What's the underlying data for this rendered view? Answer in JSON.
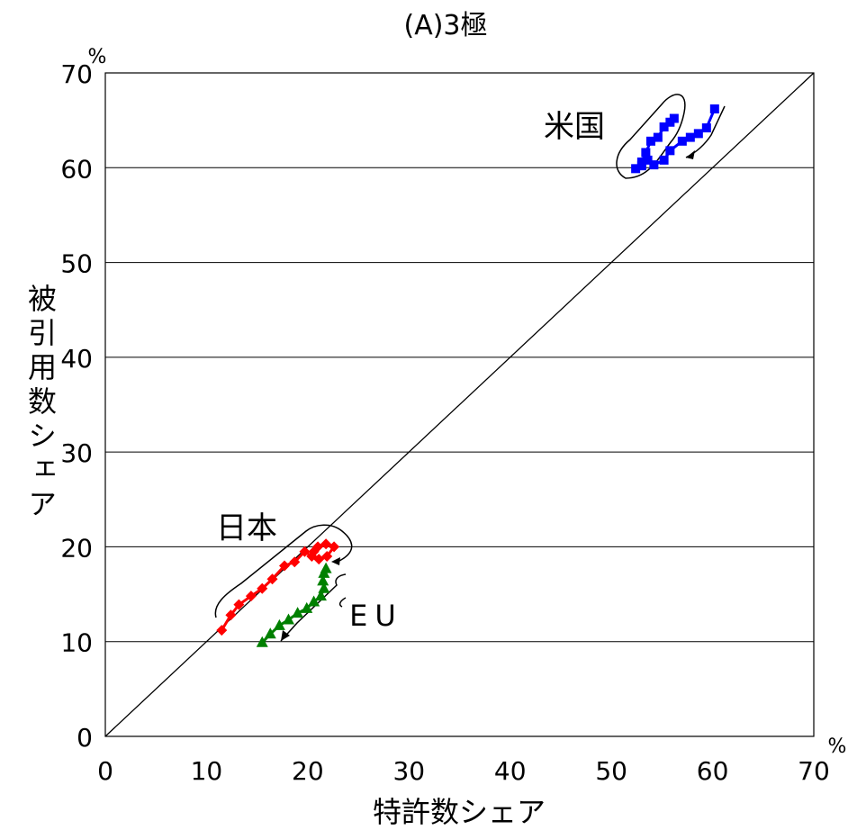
{
  "chart_data": {
    "type": "scatter",
    "title": "(A)3極",
    "xlabel": "特許数シェア",
    "ylabel": "被引用数シェア",
    "x_unit": "%",
    "y_unit": "%",
    "xlim": [
      0,
      70
    ],
    "ylim": [
      0,
      70
    ],
    "x_ticks": [
      "0",
      "10",
      "20",
      "30",
      "40",
      "50",
      "60",
      "70"
    ],
    "y_ticks": [
      "0",
      "10",
      "20",
      "30",
      "40",
      "50",
      "60",
      "70"
    ],
    "grid": "horizontal",
    "diagonal": true,
    "colors": {
      "japan": "#ff0000",
      "us": "#0000ff",
      "eu": "#008000"
    },
    "series": [
      {
        "name": "米国",
        "marker": "square",
        "color": "#0000ff",
        "points": [
          [
            60.2,
            66.2
          ],
          [
            59.4,
            64.2
          ],
          [
            58.6,
            63.6
          ],
          [
            57.8,
            63.2
          ],
          [
            57.0,
            62.8
          ],
          [
            55.8,
            61.8
          ],
          [
            55.2,
            60.8
          ],
          [
            54.2,
            60.3
          ],
          [
            53.6,
            60.8
          ],
          [
            53.0,
            60.2
          ],
          [
            52.4,
            59.9
          ],
          [
            53.0,
            60.6
          ],
          [
            53.4,
            61.6
          ],
          [
            53.9,
            62.8
          ],
          [
            54.6,
            63.2
          ],
          [
            55.2,
            64.3
          ],
          [
            55.8,
            64.8
          ],
          [
            56.2,
            65.2
          ]
        ]
      },
      {
        "name": "日本",
        "marker": "diamond",
        "color": "#ff0000",
        "points": [
          [
            11.5,
            11.2
          ],
          [
            12.4,
            12.8
          ],
          [
            13.2,
            13.9
          ],
          [
            14.4,
            14.8
          ],
          [
            15.5,
            15.6
          ],
          [
            16.5,
            16.6
          ],
          [
            17.7,
            18.0
          ],
          [
            18.7,
            18.4
          ],
          [
            19.7,
            19.5
          ],
          [
            20.4,
            19.0
          ],
          [
            21.1,
            18.7
          ],
          [
            21.9,
            19.0
          ],
          [
            22.6,
            20.0
          ],
          [
            21.8,
            20.3
          ],
          [
            21.0,
            20.0
          ],
          [
            20.6,
            19.5
          ]
        ]
      },
      {
        "name": "EU",
        "marker": "triangle",
        "color": "#008000",
        "points": [
          [
            15.5,
            9.9
          ],
          [
            16.3,
            10.8
          ],
          [
            17.2,
            11.7
          ],
          [
            18.1,
            12.3
          ],
          [
            19.0,
            13.0
          ],
          [
            19.9,
            13.5
          ],
          [
            20.6,
            14.2
          ],
          [
            21.3,
            14.8
          ],
          [
            21.6,
            15.6
          ],
          [
            21.5,
            16.4
          ],
          [
            21.6,
            17.2
          ],
          [
            21.8,
            17.7
          ]
        ]
      }
    ]
  }
}
